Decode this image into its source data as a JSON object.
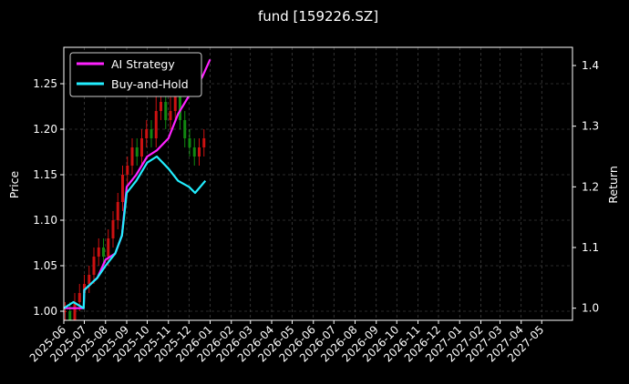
{
  "chart_data": {
    "type": "line",
    "title": "fund [159226.SZ]",
    "ylabel_left": "Price",
    "ylabel_right": "Return",
    "xlabel": "",
    "x_ticks": [
      "2025-06",
      "2025-07",
      "2025-08",
      "2025-09",
      "2025-10",
      "2025-11",
      "2025-12",
      "2026-01",
      "2026-02",
      "2026-03",
      "2026-04",
      "2026-05",
      "2026-06",
      "2026-07",
      "2026-08",
      "2026-09",
      "2026-10",
      "2026-11",
      "2026-12",
      "2027-01",
      "2027-02",
      "2027-03",
      "2027-04",
      "2027-05"
    ],
    "y_left_ticks": [
      "1.00",
      "1.05",
      "1.10",
      "1.15",
      "1.20",
      "1.25"
    ],
    "y_right_ticks": [
      "1.0",
      "1.1",
      "1.2",
      "1.3",
      "1.4"
    ],
    "ylim_left": [
      0.99,
      1.29
    ],
    "ylim_right": [
      0.98,
      1.43
    ],
    "x_range": [
      "2025-06-01",
      "2027-06-15"
    ],
    "grid": true,
    "legend_position": "top-left",
    "colors": {
      "ai_strategy": "#ff22ff",
      "buy_and_hold": "#22eeff",
      "candle_up": "#cc1111",
      "candle_down": "#118811",
      "grid": "#555555",
      "frame": "#ffffff"
    },
    "series": [
      {
        "name": "AI Strategy",
        "axis": "right",
        "color": "#ff22ff",
        "x": [
          "2025-06-01",
          "2025-06-15",
          "2025-06-30",
          "2025-07-01",
          "2025-07-20",
          "2025-08-01",
          "2025-08-15",
          "2025-08-25",
          "2025-09-01",
          "2025-09-15",
          "2025-10-01",
          "2025-10-15",
          "2025-11-01",
          "2025-11-15",
          "2025-12-01",
          "2025-12-20",
          "2026-01-01"
        ],
        "values": [
          1.0,
          1.0,
          1.0,
          1.03,
          1.05,
          1.08,
          1.09,
          1.12,
          1.2,
          1.22,
          1.25,
          1.26,
          1.28,
          1.32,
          1.35,
          1.38,
          1.41
        ]
      },
      {
        "name": "Buy-and-Hold",
        "axis": "right",
        "color": "#22eeff",
        "x": [
          "2025-06-01",
          "2025-06-15",
          "2025-06-30",
          "2025-07-01",
          "2025-07-20",
          "2025-08-01",
          "2025-08-15",
          "2025-08-25",
          "2025-09-01",
          "2025-09-15",
          "2025-10-01",
          "2025-10-15",
          "2025-11-01",
          "2025-11-15",
          "2025-12-01",
          "2025-12-10",
          "2025-12-25"
        ],
        "values": [
          1.0,
          1.01,
          1.0,
          1.03,
          1.05,
          1.07,
          1.09,
          1.12,
          1.19,
          1.21,
          1.24,
          1.25,
          1.23,
          1.21,
          1.2,
          1.19,
          1.21
        ]
      }
    ],
    "candles": {
      "axis": "left",
      "x": [
        "2025-06-03",
        "2025-06-10",
        "2025-06-17",
        "2025-06-24",
        "2025-07-01",
        "2025-07-08",
        "2025-07-15",
        "2025-07-22",
        "2025-07-29",
        "2025-08-05",
        "2025-08-12",
        "2025-08-19",
        "2025-08-26",
        "2025-09-02",
        "2025-09-09",
        "2025-09-16",
        "2025-09-23",
        "2025-09-30",
        "2025-10-07",
        "2025-10-14",
        "2025-10-21",
        "2025-10-28",
        "2025-11-04",
        "2025-11-11",
        "2025-11-18",
        "2025-11-25",
        "2025-12-02",
        "2025-12-09",
        "2025-12-16",
        "2025-12-23"
      ],
      "open": [
        1.0,
        1.0,
        0.99,
        1.01,
        1.02,
        1.03,
        1.04,
        1.06,
        1.07,
        1.06,
        1.08,
        1.1,
        1.12,
        1.15,
        1.16,
        1.18,
        1.17,
        1.19,
        1.2,
        1.19,
        1.22,
        1.23,
        1.21,
        1.22,
        1.24,
        1.21,
        1.19,
        1.18,
        1.17,
        1.18
      ],
      "close": [
        1.0,
        0.99,
        1.01,
        1.02,
        1.03,
        1.04,
        1.06,
        1.07,
        1.06,
        1.08,
        1.1,
        1.12,
        1.15,
        1.16,
        1.18,
        1.17,
        1.19,
        1.2,
        1.19,
        1.22,
        1.23,
        1.21,
        1.22,
        1.24,
        1.21,
        1.19,
        1.18,
        1.17,
        1.18,
        1.19
      ],
      "high": [
        1.01,
        1.01,
        1.02,
        1.03,
        1.04,
        1.05,
        1.07,
        1.08,
        1.08,
        1.09,
        1.11,
        1.13,
        1.16,
        1.17,
        1.19,
        1.19,
        1.2,
        1.21,
        1.21,
        1.24,
        1.26,
        1.24,
        1.24,
        1.26,
        1.25,
        1.22,
        1.2,
        1.19,
        1.19,
        1.2
      ],
      "low": [
        0.99,
        0.99,
        0.99,
        1.0,
        1.01,
        1.02,
        1.03,
        1.05,
        1.05,
        1.05,
        1.07,
        1.09,
        1.11,
        1.14,
        1.15,
        1.16,
        1.16,
        1.18,
        1.18,
        1.18,
        1.21,
        1.2,
        1.2,
        1.21,
        1.2,
        1.18,
        1.17,
        1.16,
        1.16,
        1.17
      ]
    }
  }
}
